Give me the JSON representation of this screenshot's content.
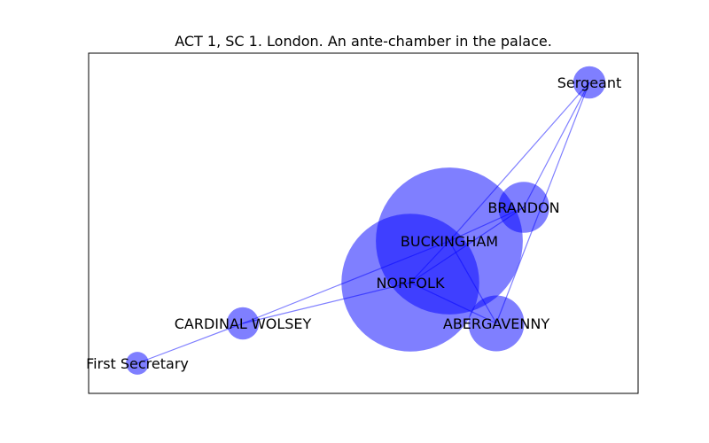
{
  "title": "ACT 1, SC 1. London. An ante-chamber in the palace.",
  "colors": {
    "node_fill": "#0000ff",
    "edge": "#0000ff",
    "frame": "#000000",
    "background": "#ffffff"
  },
  "nodes": [
    {
      "id": "BUCKINGHAM",
      "label": "BUCKINGHAM",
      "weight": 83
    },
    {
      "id": "NORFOLK",
      "label": "NORFOLK",
      "weight": 73
    },
    {
      "id": "BRANDON",
      "label": "BRANDON",
      "weight": 10
    },
    {
      "id": "ABERGAVENNY",
      "label": "ABERGAVENNY",
      "weight": 12
    },
    {
      "id": "Sergeant",
      "label": "Sergeant",
      "weight": 4
    },
    {
      "id": "CARDINAL WOLSEY",
      "label": "CARDINAL WOLSEY",
      "weight": 4
    },
    {
      "id": "First Secretary",
      "label": "First Secretary",
      "weight": 2
    }
  ],
  "edges": [
    {
      "source": "BUCKINGHAM",
      "target": "NORFOLK"
    },
    {
      "source": "BUCKINGHAM",
      "target": "BRANDON"
    },
    {
      "source": "BUCKINGHAM",
      "target": "ABERGAVENNY"
    },
    {
      "source": "BUCKINGHAM",
      "target": "Sergeant"
    },
    {
      "source": "BUCKINGHAM",
      "target": "CARDINAL WOLSEY"
    },
    {
      "source": "NORFOLK",
      "target": "CARDINAL WOLSEY"
    },
    {
      "source": "NORFOLK",
      "target": "BRANDON"
    },
    {
      "source": "NORFOLK",
      "target": "ABERGAVENNY"
    },
    {
      "source": "CARDINAL WOLSEY",
      "target": "First Secretary"
    },
    {
      "source": "BRANDON",
      "target": "Sergeant"
    },
    {
      "source": "ABERGAVENNY",
      "target": "Sergeant"
    }
  ]
}
